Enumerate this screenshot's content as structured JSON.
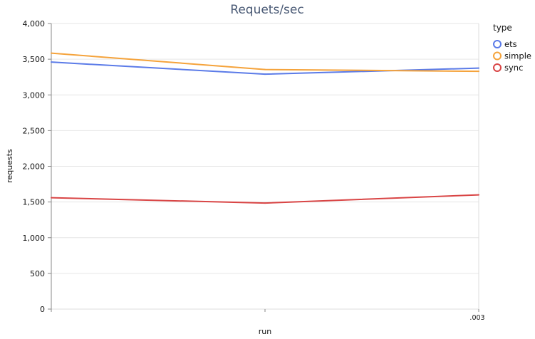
{
  "chart_data": {
    "type": "line",
    "title": "Requets/sec",
    "xlabel": "run",
    "ylabel": "requests",
    "x": [
      "",
      "",
      ".003"
    ],
    "ylim": [
      0,
      4000
    ],
    "yticks": [
      0,
      500,
      1000,
      1500,
      2000,
      2500,
      3000,
      3500,
      4000
    ],
    "ytick_labels": [
      "0",
      "500",
      "1,000",
      "1,500",
      "2,000",
      "2,500",
      "3,000",
      "3,500",
      "4,000"
    ],
    "grid": true,
    "legend_title": "type",
    "legend_position": "right",
    "series": [
      {
        "name": "ets",
        "color": "#5b7be8",
        "values": [
          3460,
          3290,
          3375
        ]
      },
      {
        "name": "simple",
        "color": "#f5a33b",
        "values": [
          3585,
          3355,
          3330
        ]
      },
      {
        "name": "sync",
        "color": "#d94545",
        "values": [
          1560,
          1485,
          1600
        ]
      }
    ]
  }
}
